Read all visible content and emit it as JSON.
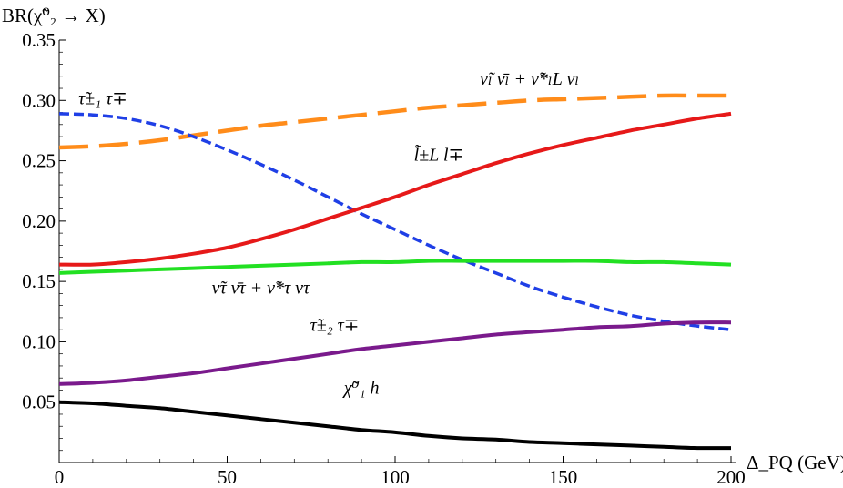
{
  "chart_data": {
    "type": "line",
    "ylabel": "BR(χ̃⁰₂ → X)",
    "xlabel": "Δ_PQ (GeV)",
    "xlim": [
      0,
      200
    ],
    "ylim": [
      0.0,
      0.35
    ],
    "x_ticks": [
      0,
      50,
      100,
      150,
      200
    ],
    "x_tick_labels": [
      "0",
      "50",
      "100",
      "150",
      "200"
    ],
    "y_ticks": [
      0.05,
      0.1,
      0.15,
      0.2,
      0.25,
      0.3,
      0.35
    ],
    "y_tick_labels": [
      "0.05",
      "0.10",
      "0.15",
      "0.20",
      "0.25",
      "0.30",
      "0.35"
    ],
    "grid": false,
    "x": [
      0,
      10,
      20,
      30,
      40,
      50,
      60,
      70,
      80,
      90,
      100,
      110,
      120,
      130,
      140,
      150,
      160,
      170,
      180,
      190,
      200
    ],
    "series": [
      {
        "name": "ν̃_l ν̄_l + ν̃*_{l_L} ν_l",
        "label": "ν̃ₗ ν̄ₗ + ν̃*ₗL νₗ",
        "color": "#ff8c1a",
        "dash": "dashed",
        "label_at": [
          140,
          0.313
        ],
        "values": [
          0.261,
          0.262,
          0.264,
          0.267,
          0.271,
          0.275,
          0.279,
          0.282,
          0.285,
          0.288,
          0.291,
          0.294,
          0.296,
          0.298,
          0.3,
          0.301,
          0.302,
          0.303,
          0.304,
          0.304,
          0.304
        ]
      },
      {
        "name": "τ̃^±_1 τ^∓",
        "label": "τ̃±₁ τ∓",
        "color": "#1f3fe6",
        "dash": "dashed",
        "label_at": [
          13,
          0.297
        ],
        "values": [
          0.289,
          0.288,
          0.285,
          0.279,
          0.27,
          0.259,
          0.247,
          0.234,
          0.22,
          0.206,
          0.193,
          0.18,
          0.168,
          0.157,
          0.146,
          0.137,
          0.129,
          0.122,
          0.117,
          0.113,
          0.11
        ]
      },
      {
        "name": "l̃^±_L l^∓",
        "label": "l̃±L l∓",
        "color": "#e61919",
        "dash": "solid",
        "label_at": [
          113,
          0.25
        ],
        "values": [
          0.164,
          0.164,
          0.166,
          0.169,
          0.173,
          0.178,
          0.185,
          0.193,
          0.202,
          0.211,
          0.22,
          0.23,
          0.239,
          0.248,
          0.256,
          0.263,
          0.269,
          0.275,
          0.28,
          0.285,
          0.289
        ]
      },
      {
        "name": "ν̃_τ ν̄_τ + ν̃*_τ ν_τ",
        "label": "ν̃τ ν̄τ + ν̃*τ ντ",
        "color": "#22e022",
        "dash": "solid",
        "label_at": [
          60,
          0.14
        ],
        "values": [
          0.157,
          0.158,
          0.159,
          0.16,
          0.161,
          0.162,
          0.163,
          0.164,
          0.165,
          0.166,
          0.166,
          0.167,
          0.167,
          0.167,
          0.167,
          0.167,
          0.167,
          0.166,
          0.166,
          0.165,
          0.164
        ]
      },
      {
        "name": "τ̃^±_2 τ^∓",
        "label": "τ̃±₂ τ∓",
        "color": "#7a1a8c",
        "dash": "solid",
        "label_at": [
          82,
          0.109
        ],
        "values": [
          0.065,
          0.066,
          0.068,
          0.071,
          0.074,
          0.078,
          0.082,
          0.086,
          0.09,
          0.094,
          0.097,
          0.1,
          0.103,
          0.106,
          0.108,
          0.11,
          0.112,
          0.113,
          0.115,
          0.116,
          0.116
        ]
      },
      {
        "name": "χ̃⁰₁ h",
        "label": "χ̃⁰₁ h",
        "color": "#000000",
        "dash": "solid",
        "label_at": [
          90,
          0.057
        ],
        "values": [
          0.05,
          0.049,
          0.047,
          0.045,
          0.042,
          0.039,
          0.036,
          0.033,
          0.03,
          0.027,
          0.025,
          0.022,
          0.02,
          0.019,
          0.017,
          0.016,
          0.015,
          0.014,
          0.013,
          0.012,
          0.012
        ]
      }
    ]
  }
}
